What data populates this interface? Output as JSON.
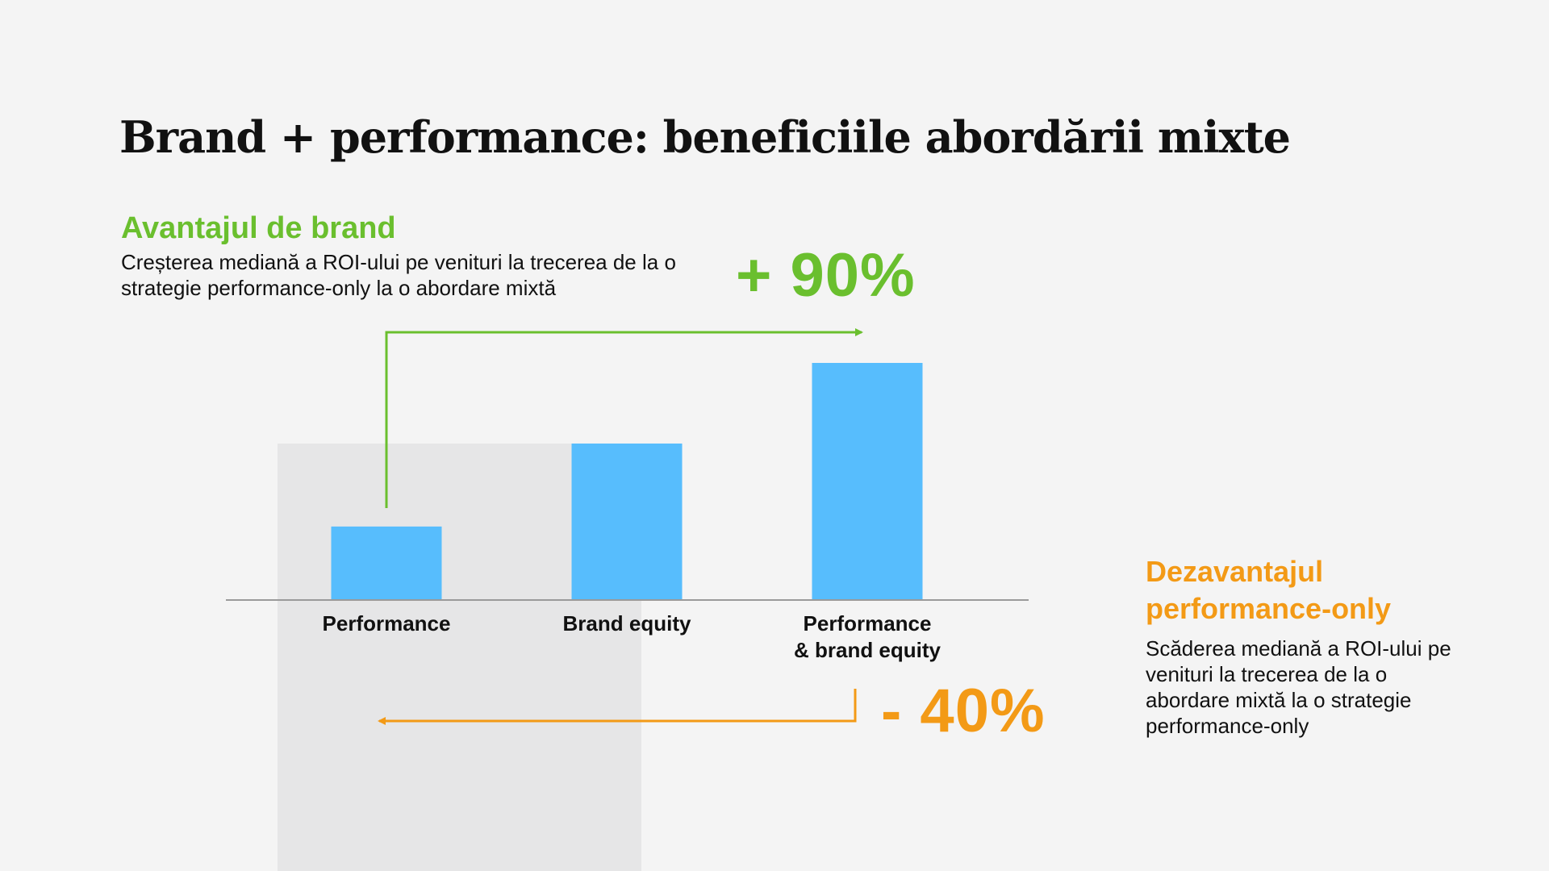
{
  "title": "Brand + performance: beneficiile abordării mixte",
  "brand_advantage": {
    "heading": "Avantajul de brand",
    "description": "Creșterea mediană a ROI-ului pe venituri la trecerea de la o strategie performance-only la o abordare mixtă",
    "value_label": "+ 90%",
    "color": "#6abf2e"
  },
  "performance_disadvantage": {
    "heading": "Dezavantajul performance-only",
    "description": "Scăderea mediană a ROI-ului pe venituri la trecerea de la o abordare mixtă la o strategie performance-only",
    "value_label": "- 40%",
    "color": "#f39a16"
  },
  "chart_data": {
    "type": "bar",
    "categories": [
      "Performance",
      "Brand equity",
      "Performance\n& brand equity"
    ],
    "values": [
      31,
      66,
      100
    ],
    "ylim": [
      0,
      100
    ],
    "grid": false,
    "bar_color": "#57bdfd"
  }
}
